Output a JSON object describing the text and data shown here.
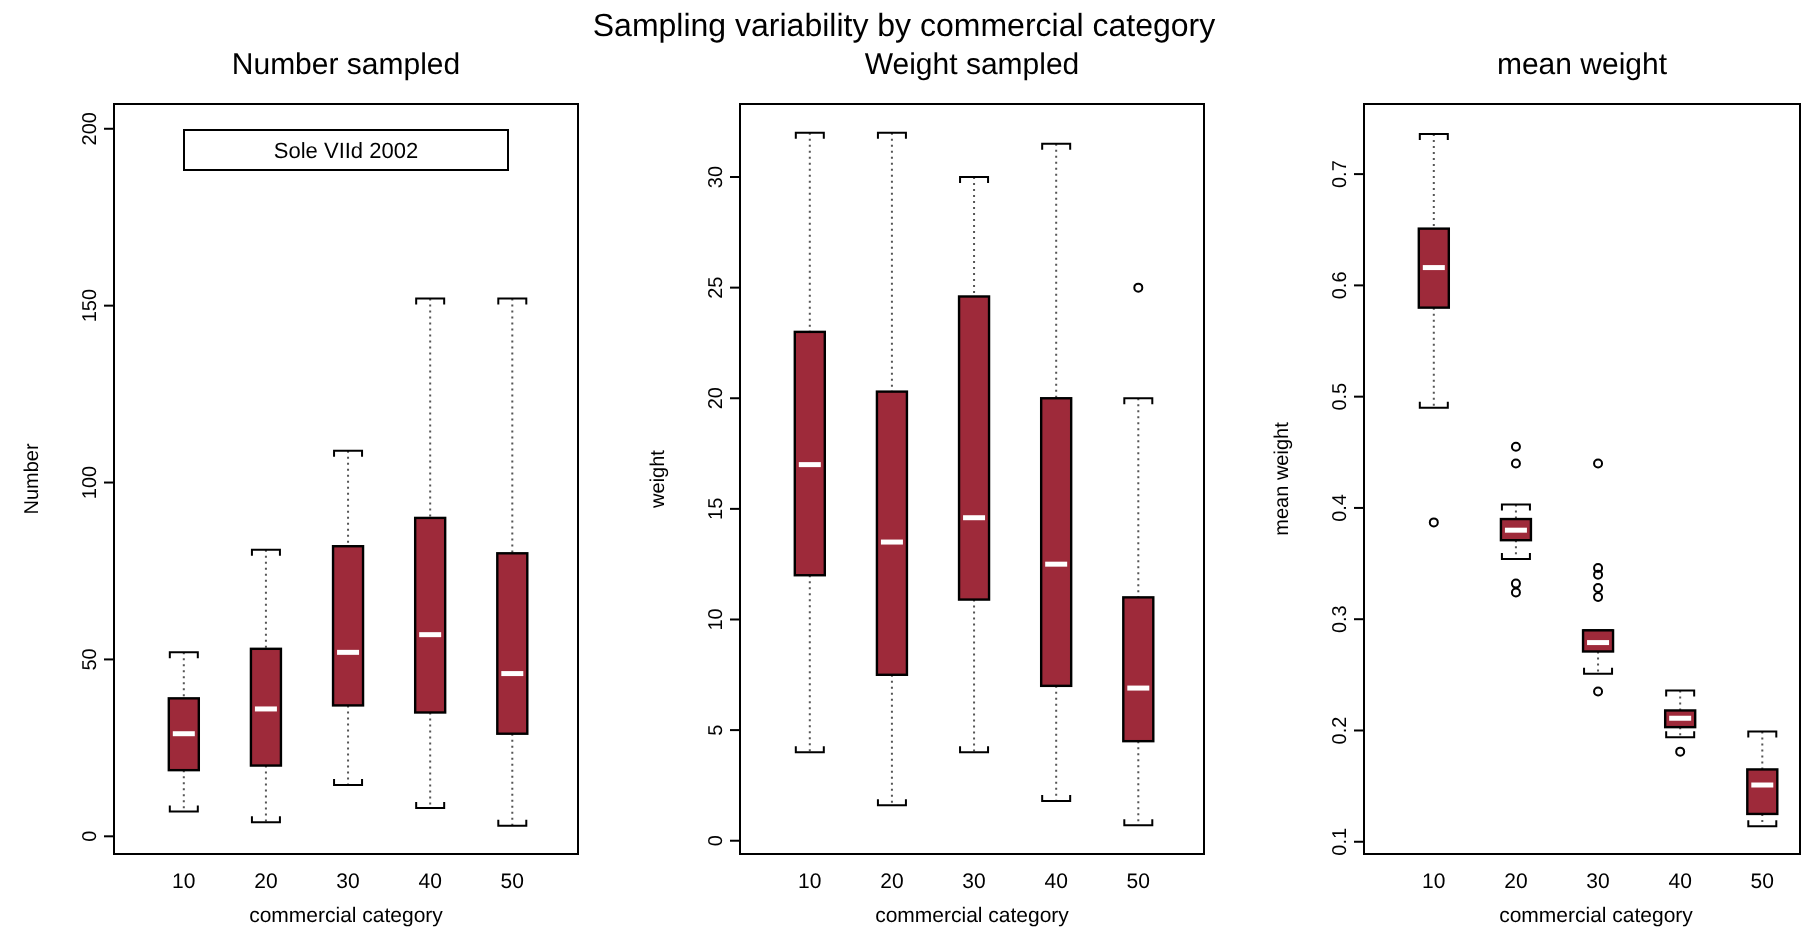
{
  "chart_data": [
    {
      "type": "box",
      "title": "Number sampled",
      "xlabel": "commercial category",
      "ylabel": "Number",
      "categories": [
        "10",
        "20",
        "30",
        "40",
        "50"
      ],
      "ylim": [
        -5,
        207
      ],
      "yticks": [
        0,
        50,
        100,
        150,
        200
      ],
      "color": "#9e2a3a",
      "annotations": [
        "Sampling variability by commercial category",
        "Sole VIId 2002"
      ],
      "boxes": [
        {
          "low": 7,
          "q1": 18.7,
          "median": 29,
          "q3": 39,
          "high": 52
        },
        {
          "low": 4,
          "q1": 20,
          "median": 36,
          "q3": 53,
          "high": 81
        },
        {
          "low": 14.5,
          "q1": 37,
          "median": 52,
          "q3": 82,
          "high": 109
        },
        {
          "low": 8,
          "q1": 35,
          "median": 57,
          "q3": 90,
          "high": 152
        },
        {
          "low": 3,
          "q1": 29,
          "median": 46,
          "q3": 80,
          "high": 152
        }
      ]
    },
    {
      "type": "box",
      "title": "Weight sampled",
      "xlabel": "commercial category",
      "ylabel": "weight",
      "categories": [
        "10",
        "20",
        "30",
        "40",
        "50"
      ],
      "ylim": [
        -0.6,
        33.3
      ],
      "yticks": [
        0,
        5,
        10,
        15,
        20,
        25,
        30
      ],
      "color": "#9e2a3a",
      "boxes": [
        {
          "low": 4,
          "q1": 12,
          "median": 17,
          "q3": 23,
          "high": 32
        },
        {
          "low": 1.6,
          "q1": 7.5,
          "median": 13.5,
          "q3": 20.3,
          "high": 32
        },
        {
          "low": 4,
          "q1": 10.9,
          "median": 14.6,
          "q3": 24.6,
          "high": 30
        },
        {
          "low": 1.8,
          "q1": 7,
          "median": 12.5,
          "q3": 20,
          "high": 31.5
        },
        {
          "low": 0.7,
          "q1": 4.5,
          "median": 6.9,
          "q3": 11,
          "high": 20,
          "outliers": [
            25
          ]
        }
      ]
    },
    {
      "type": "box",
      "title": "mean weight",
      "xlabel": "commercial category",
      "ylabel": "mean weight",
      "categories": [
        "10",
        "20",
        "30",
        "40",
        "50"
      ],
      "ylim": [
        0.089,
        0.763
      ],
      "yticks": [
        0.1,
        0.2,
        0.3,
        0.4,
        0.5,
        0.6,
        0.7
      ],
      "color": "#9e2a3a",
      "boxes": [
        {
          "low": 0.49,
          "q1": 0.58,
          "median": 0.616,
          "q3": 0.651,
          "high": 0.736,
          "outliers": [
            0.387
          ]
        },
        {
          "low": 0.354,
          "q1": 0.371,
          "median": 0.38,
          "q3": 0.39,
          "high": 0.403,
          "outliers": [
            0.455,
            0.44,
            0.332,
            0.324
          ]
        },
        {
          "low": 0.251,
          "q1": 0.271,
          "median": 0.279,
          "q3": 0.29,
          "high": 0.29,
          "outliers": [
            0.44,
            0.346,
            0.34,
            0.328,
            0.32,
            0.235
          ]
        },
        {
          "low": 0.194,
          "q1": 0.203,
          "median": 0.211,
          "q3": 0.218,
          "high": 0.236,
          "outliers": [
            0.181
          ]
        },
        {
          "low": 0.114,
          "q1": 0.125,
          "median": 0.151,
          "q3": 0.165,
          "high": 0.199
        }
      ]
    }
  ]
}
